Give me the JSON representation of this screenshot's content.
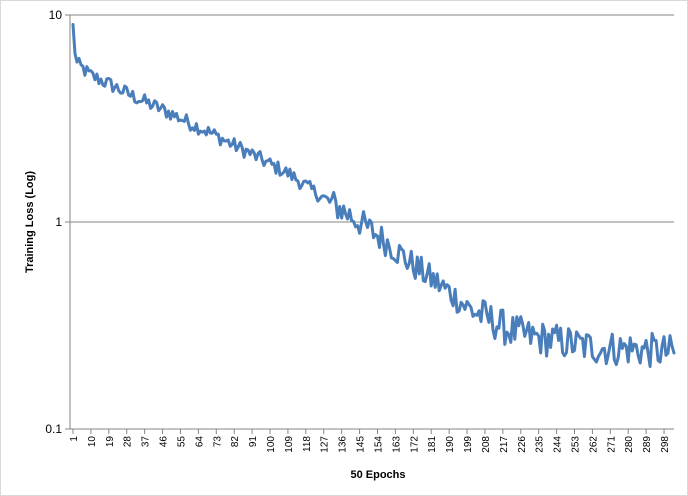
{
  "chart_data": {
    "type": "line",
    "title": "",
    "xlabel": "50 Epochs",
    "ylabel": "Training Loss (Log)",
    "y_scale": "log",
    "ylim": [
      0.1,
      10
    ],
    "y_ticks": [
      "10",
      "1",
      "0.1"
    ],
    "y_tick_values": [
      10,
      1,
      0.1
    ],
    "grid": "horizontal major gridlines",
    "legend": "none",
    "line_color": "#4A7EBB",
    "x_tick_labels": [
      "1",
      "10",
      "19",
      "28",
      "37",
      "46",
      "55",
      "64",
      "73",
      "82",
      "91",
      "100",
      "109",
      "118",
      "127",
      "136",
      "145",
      "154",
      "163",
      "172",
      "181",
      "190",
      "199",
      "208",
      "217",
      "226",
      "235",
      "244",
      "253",
      "262",
      "271",
      "280",
      "289",
      "298"
    ],
    "x_keypoints": [
      1,
      2,
      3,
      10,
      20,
      30,
      40,
      50,
      60,
      70,
      80,
      90,
      100,
      110,
      120,
      130,
      140,
      150,
      160,
      170,
      180,
      190,
      200,
      210,
      220,
      230,
      240,
      250,
      260,
      270,
      280,
      290,
      300
    ],
    "y_keypoints": [
      9.0,
      6.5,
      5.8,
      5.1,
      4.6,
      4.1,
      3.7,
      3.35,
      3.0,
      2.7,
      2.4,
      2.15,
      1.9,
      1.7,
      1.45,
      1.25,
      1.08,
      0.92,
      0.78,
      0.64,
      0.54,
      0.46,
      0.38,
      0.34,
      0.3,
      0.28,
      0.27,
      0.26,
      0.25,
      0.245,
      0.245,
      0.24,
      0.235
    ]
  }
}
